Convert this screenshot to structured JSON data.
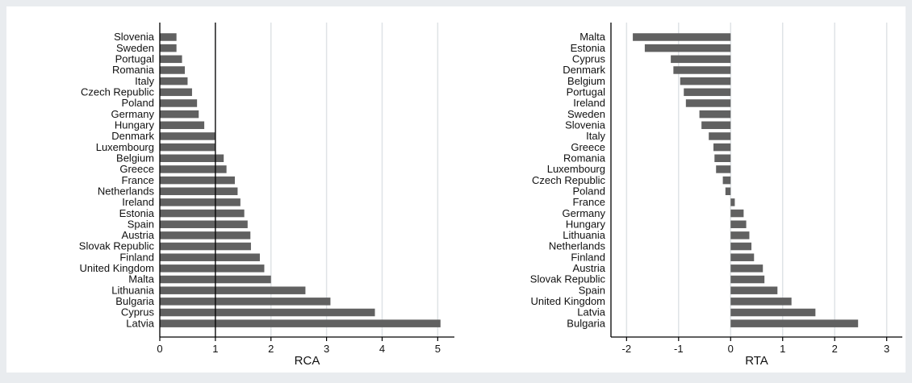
{
  "colors": {
    "background": "#e9ecef",
    "panel": "#ffffff",
    "bar": "#616161",
    "grid": "#dfe3e6",
    "axis": "#000000"
  },
  "chart_data": [
    {
      "type": "bar",
      "orientation": "horizontal",
      "xlabel": "RCA",
      "ylabel": "",
      "xlim": [
        0,
        5.3
      ],
      "xticks": [
        0,
        1,
        2,
        3,
        4,
        5
      ],
      "reference_line": 1,
      "grid": true,
      "categories": [
        "Slovenia",
        "Sweden",
        "Portugal",
        "Romania",
        "Italy",
        "Czech Republic",
        "Poland",
        "Germany",
        "Hungary",
        "Denmark",
        "Luxembourg",
        "Belgium",
        "Greece",
        "France",
        "Netherlands",
        "Ireland",
        "Estonia",
        "Spain",
        "Austria",
        "Slovak Republic",
        "Finland",
        "United Kingdom",
        "Malta",
        "Lithuania",
        "Bulgaria",
        "Cyprus",
        "Latvia"
      ],
      "values": [
        0.3,
        0.3,
        0.4,
        0.45,
        0.5,
        0.58,
        0.67,
        0.7,
        0.8,
        1.0,
        1.0,
        1.15,
        1.2,
        1.35,
        1.4,
        1.45,
        1.52,
        1.58,
        1.63,
        1.64,
        1.8,
        1.88,
        2.0,
        2.62,
        3.07,
        3.87,
        5.05
      ]
    },
    {
      "type": "bar",
      "orientation": "horizontal",
      "xlabel": "RTA",
      "ylabel": "",
      "xlim": [
        -2.3,
        3.3
      ],
      "xticks": [
        -2,
        -1,
        0,
        1,
        2,
        3
      ],
      "grid": true,
      "categories": [
        "Malta",
        "Estonia",
        "Cyprus",
        "Denmark",
        "Belgium",
        "Portugal",
        "Ireland",
        "Sweden",
        "Slovenia",
        "Italy",
        "Greece",
        "Romania",
        "Luxembourg",
        "Czech Republic",
        "Poland",
        "France",
        "Germany",
        "Hungary",
        "Lithuania",
        "Netherlands",
        "Finland",
        "Austria",
        "Slovak Republic",
        "Spain",
        "United Kingdom",
        "Latvia",
        "Bulgaria"
      ],
      "values": [
        -1.88,
        -1.65,
        -1.15,
        -1.1,
        -0.97,
        -0.9,
        -0.86,
        -0.6,
        -0.56,
        -0.42,
        -0.33,
        -0.31,
        -0.28,
        -0.15,
        -0.1,
        0.08,
        0.25,
        0.3,
        0.36,
        0.4,
        0.45,
        0.62,
        0.65,
        0.9,
        1.17,
        1.63,
        2.45
      ]
    }
  ]
}
